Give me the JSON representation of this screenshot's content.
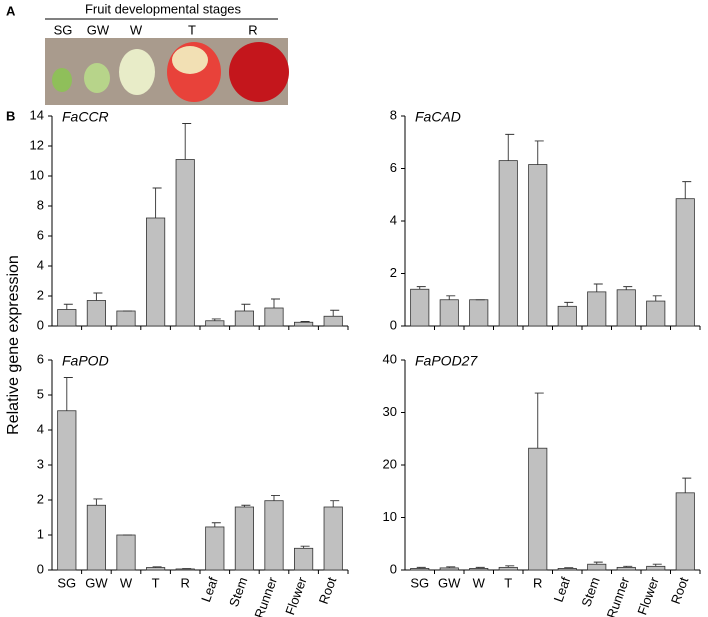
{
  "panel_a": {
    "label": "A",
    "title": "Fruit developmental stages",
    "stages": [
      "SG",
      "GW",
      "W",
      "T",
      "R"
    ]
  },
  "panel_b_label": "B",
  "y_axis_label": "Relative gene expression",
  "chart_data": [
    {
      "type": "bar",
      "title": "FaCCR",
      "color": "#c0c0c0",
      "categories": [
        null,
        null,
        null,
        null,
        null,
        null,
        null,
        null,
        null,
        null
      ],
      "values": [
        1.1,
        1.7,
        1.0,
        7.2,
        11.1,
        0.35,
        1.0,
        1.2,
        0.25,
        0.65
      ],
      "errors": [
        0.35,
        0.5,
        0,
        2.0,
        2.4,
        0.12,
        0.45,
        0.6,
        0.05,
        0.4
      ],
      "ylim": [
        0,
        14
      ],
      "yticks": [
        0,
        2,
        4,
        6,
        8,
        10,
        12,
        14
      ]
    },
    {
      "type": "bar",
      "title": "FaCAD",
      "color": "#c0c0c0",
      "categories": [
        null,
        null,
        null,
        null,
        null,
        null,
        null,
        null,
        null,
        null
      ],
      "values": [
        1.4,
        1.0,
        1.0,
        6.3,
        6.15,
        0.75,
        1.3,
        1.38,
        0.95,
        4.85
      ],
      "errors": [
        0.1,
        0.15,
        0,
        1.0,
        0.9,
        0.15,
        0.3,
        0.12,
        0.2,
        0.65
      ],
      "ylim": [
        0,
        8
      ],
      "yticks": [
        0,
        2,
        4,
        6,
        8
      ]
    },
    {
      "type": "bar",
      "title": "FaPOD",
      "color": "#c0c0c0",
      "categories": [
        "SG",
        "GW",
        "W",
        "T",
        "R",
        "Leaf",
        "Stem",
        "Runner",
        "Flower",
        "Root"
      ],
      "values": [
        4.55,
        1.85,
        1.0,
        0.07,
        0.03,
        1.23,
        1.8,
        1.98,
        0.62,
        1.8
      ],
      "errors": [
        0.95,
        0.18,
        0,
        0.02,
        0.01,
        0.12,
        0.05,
        0.15,
        0.06,
        0.18
      ],
      "ylim": [
        0,
        6
      ],
      "yticks": [
        0,
        1,
        2,
        3,
        4,
        5,
        6
      ]
    },
    {
      "type": "bar",
      "title": "FaPOD27",
      "color": "#c0c0c0",
      "categories": [
        "SG",
        "GW",
        "W",
        "T",
        "R",
        "Leaf",
        "Stem",
        "Runner",
        "Flower",
        "Root"
      ],
      "values": [
        0.3,
        0.4,
        0.3,
        0.5,
        23.2,
        0.3,
        1.1,
        0.5,
        0.7,
        14.7
      ],
      "errors": [
        0.2,
        0.2,
        0.2,
        0.3,
        10.5,
        0.15,
        0.4,
        0.2,
        0.4,
        2.8
      ],
      "ylim": [
        0,
        40
      ],
      "yticks": [
        0,
        10,
        20,
        30,
        40
      ]
    }
  ]
}
